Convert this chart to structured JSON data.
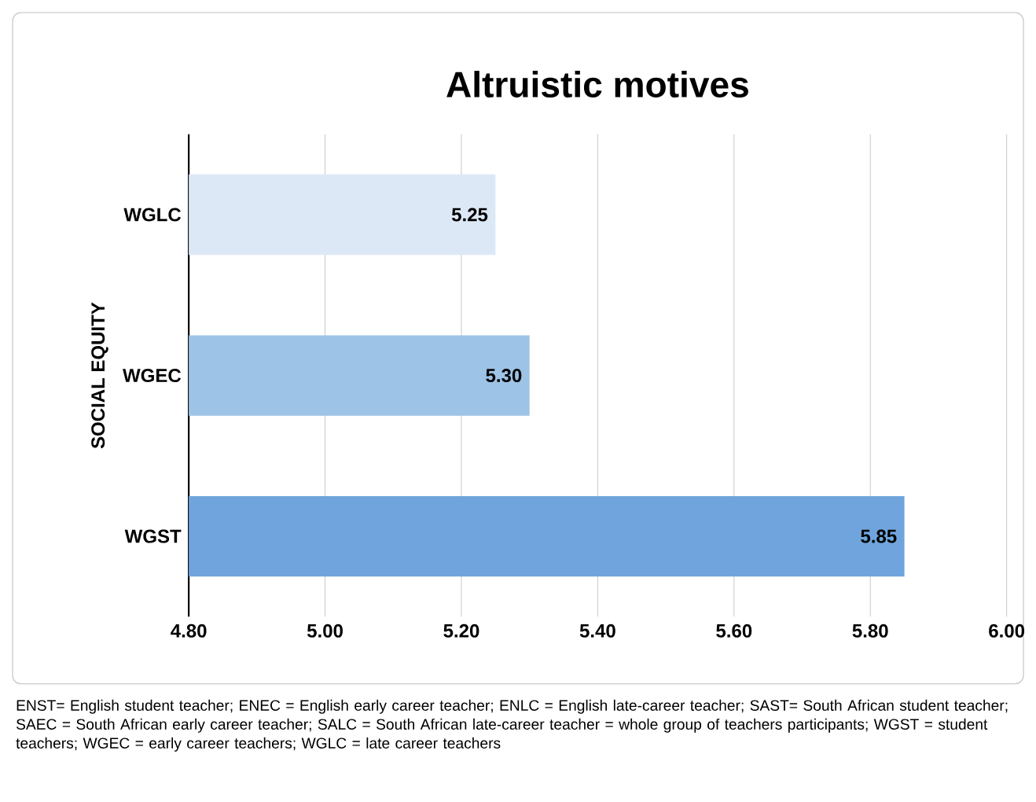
{
  "chart_data": {
    "type": "bar",
    "orientation": "horizontal",
    "title": "Altruistic motives",
    "ylabel": "SOCIAL EQUITY",
    "categories": [
      "WGLC",
      "WGEC",
      "WGST"
    ],
    "values": [
      5.25,
      5.3,
      5.85
    ],
    "colors": [
      "#dde8f6",
      "#9dc3e6",
      "#6fa5dc"
    ],
    "value_labels": [
      "5.25",
      "5.30",
      "5.85"
    ],
    "xlim": [
      4.8,
      6.0
    ],
    "xticks": [
      {
        "value": 4.8,
        "label": "4.80"
      },
      {
        "value": 5.0,
        "label": "5.00"
      },
      {
        "value": 5.2,
        "label": "5.20"
      },
      {
        "value": 5.4,
        "label": "5.40"
      },
      {
        "value": 5.6,
        "label": "5.60"
      },
      {
        "value": 5.8,
        "label": "5.80"
      },
      {
        "value": 6.0,
        "label": "6.00"
      }
    ],
    "grid": "x",
    "annotations": [
      "ENST= English student teacher; ENEC = English early career teacher; ENLC = English late-career teacher; SAST= South African student teacher; SAEC = South African early career teacher; SALC = South African late-career teacher = whole group of teachers participants; WGST = student teachers; WGEC = early career teachers; WGLC = late career teachers"
    ]
  }
}
